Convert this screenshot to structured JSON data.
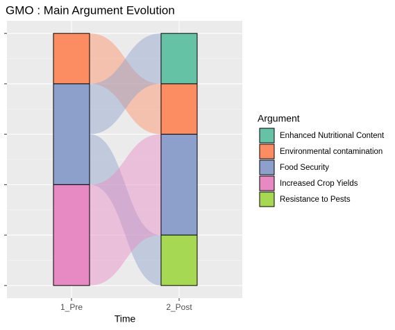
{
  "chart_data": {
    "type": "alluvial",
    "title": "GMO : Main Argument Evolution",
    "x_label": "Time",
    "categories": [
      "1_Pre",
      "2_Post"
    ],
    "legend_title": "Argument",
    "series": [
      {
        "name": "Enhanced Nutritional Content",
        "color": "#66c2a5"
      },
      {
        "name": "Environmental contamination",
        "color": "#fc8d62"
      },
      {
        "name": "Food Security",
        "color": "#8da0cb"
      },
      {
        "name": "Increased Crop Yields",
        "color": "#e78ac3"
      },
      {
        "name": "Resistance to Pests",
        "color": "#a6d854"
      }
    ],
    "strata": [
      [
        {
          "series": 1,
          "value": 1
        },
        {
          "series": 2,
          "value": 2
        },
        {
          "series": 3,
          "value": 2
        }
      ],
      [
        {
          "series": 0,
          "value": 1
        },
        {
          "series": 1,
          "value": 1
        },
        {
          "series": 2,
          "value": 2
        },
        {
          "series": 4,
          "value": 1
        }
      ]
    ],
    "flows": [
      {
        "from": 1,
        "to": 1,
        "value": 1
      },
      {
        "from": 2,
        "to": 0,
        "value": 1
      },
      {
        "from": 2,
        "to": 4,
        "value": 1
      },
      {
        "from": 3,
        "to": 2,
        "value": 2
      }
    ],
    "ylim": [
      -0.25,
      5.25
    ],
    "yticks": [
      0,
      1,
      2,
      3,
      4,
      5
    ],
    "grid": true,
    "legend_position": "right"
  }
}
